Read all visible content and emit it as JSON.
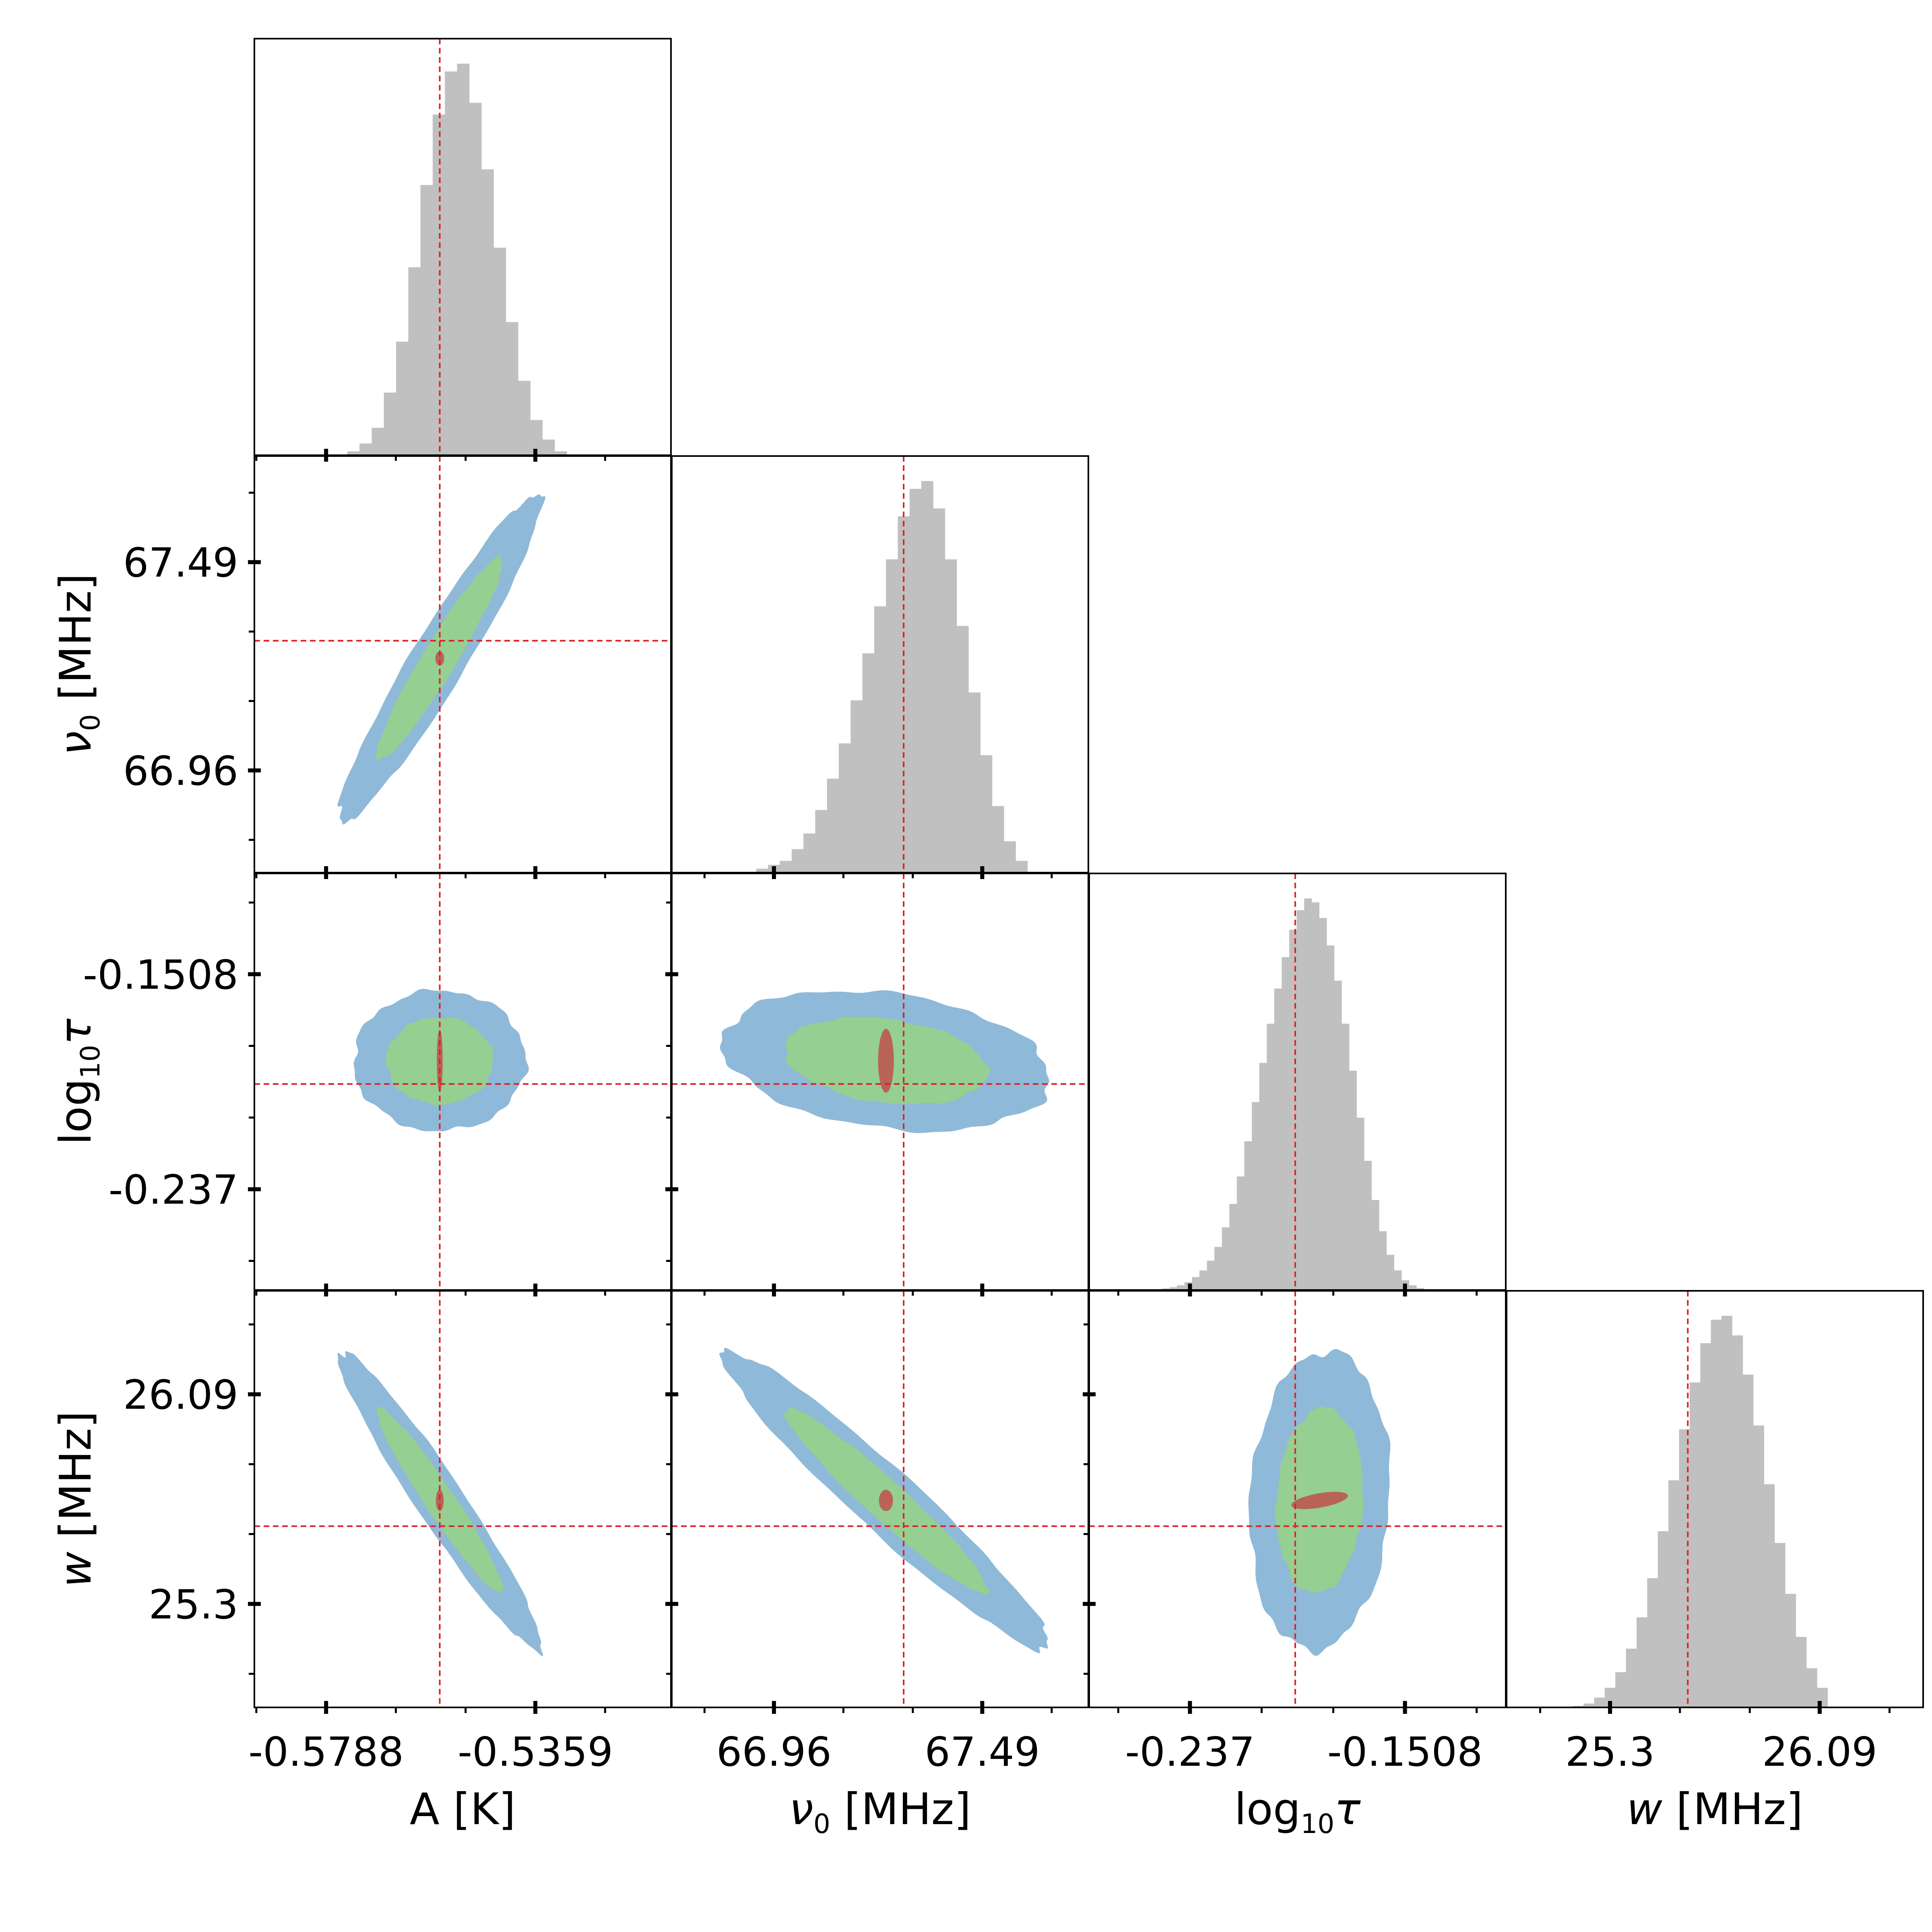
{
  "chart_data": {
    "type": "corner",
    "parameters": [
      {
        "key": "A",
        "label": "A [K]",
        "ticks": [
          -0.5788,
          -0.5359
        ],
        "tick_labels": [
          "-0.5788",
          "-0.5359"
        ],
        "range": [
          -0.5935,
          -0.5081
        ],
        "truth": -0.5555
      },
      {
        "key": "nu0",
        "label": "ν₀ [MHz]",
        "label_symbol": "ν",
        "label_sub": "0",
        "label_unit": "[MHz]",
        "ticks": [
          66.96,
          67.49
        ],
        "tick_labels": [
          "66.96",
          "67.49"
        ],
        "range": [
          66.7,
          67.76
        ],
        "truth": 67.29
      },
      {
        "key": "logtau",
        "label": "log₁₀τ",
        "label_prefix": "log",
        "label_sub": "10",
        "label_symbol": "τ",
        "ticks": [
          -0.237,
          -0.1508
        ],
        "tick_labels": [
          "-0.237",
          "-0.1508"
        ],
        "range": [
          -0.2774,
          -0.1104
        ],
        "truth": -0.1948
      },
      {
        "key": "w",
        "label": "w [MHz]",
        "label_symbol": "w",
        "label_unit": "[MHz]",
        "ticks": [
          25.3,
          26.09
        ],
        "tick_labels": [
          "25.3",
          "26.09"
        ],
        "range": [
          24.91,
          26.48
        ],
        "truth": 25.593
      }
    ],
    "histograms": [
      {
        "param": "A",
        "bins": [
          -0.5732,
          -0.5707,
          -0.5682,
          -0.5657,
          -0.5632,
          -0.5607,
          -0.5582,
          -0.5557,
          -0.5532,
          -0.5507,
          -0.5482,
          -0.5457,
          -0.5432,
          -0.5407,
          -0.5382,
          -0.5357,
          -0.5332,
          -0.5307
        ],
        "counts": [
          0.01,
          0.03,
          0.07,
          0.16,
          0.29,
          0.48,
          0.69,
          0.87,
          0.98,
          1.0,
          0.9,
          0.73,
          0.53,
          0.34,
          0.19,
          0.09,
          0.04,
          0.01
        ]
      },
      {
        "param": "nu0",
        "bins": [
          66.93,
          66.96,
          66.99,
          67.02,
          67.05,
          67.08,
          67.11,
          67.14,
          67.17,
          67.2,
          67.23,
          67.26,
          67.29,
          67.32,
          67.35,
          67.38,
          67.41,
          67.44,
          67.47,
          67.5,
          67.53,
          67.56,
          67.59
        ],
        "counts": [
          0.01,
          0.02,
          0.03,
          0.06,
          0.1,
          0.16,
          0.24,
          0.33,
          0.44,
          0.56,
          0.68,
          0.8,
          0.91,
          0.98,
          1.0,
          0.93,
          0.8,
          0.63,
          0.46,
          0.3,
          0.17,
          0.08,
          0.03
        ]
      },
      {
        "param": "logtau",
        "bins": [
          -0.2497,
          -0.2467,
          -0.2437,
          -0.2407,
          -0.2377,
          -0.2347,
          -0.2317,
          -0.2287,
          -0.2257,
          -0.2227,
          -0.2197,
          -0.2167,
          -0.2137,
          -0.2107,
          -0.2077,
          -0.2047,
          -0.2017,
          -0.1987,
          -0.1957,
          -0.1927,
          -0.1897,
          -0.1867,
          -0.1837,
          -0.1807,
          -0.1777,
          -0.1747,
          -0.1717,
          -0.1687,
          -0.1657,
          -0.1627,
          -0.1597,
          -0.1567,
          -0.1537,
          -0.1507,
          -0.1477,
          -0.1447
        ],
        "counts": [
          0.002,
          0.004,
          0.007,
          0.012,
          0.02,
          0.033,
          0.05,
          0.075,
          0.11,
          0.16,
          0.22,
          0.29,
          0.38,
          0.48,
          0.58,
          0.68,
          0.77,
          0.85,
          0.92,
          0.97,
          1.0,
          0.99,
          0.95,
          0.88,
          0.79,
          0.68,
          0.56,
          0.44,
          0.33,
          0.23,
          0.15,
          0.09,
          0.05,
          0.025,
          0.012,
          0.005
        ]
      },
      {
        "param": "w",
        "bins": [
          25.18,
          25.22,
          25.26,
          25.3,
          25.34,
          25.38,
          25.42,
          25.46,
          25.5,
          25.54,
          25.58,
          25.62,
          25.66,
          25.7,
          25.74,
          25.78,
          25.82,
          25.86,
          25.9,
          25.94,
          25.98,
          26.02,
          26.06,
          26.1
        ],
        "counts": [
          0.004,
          0.01,
          0.025,
          0.05,
          0.09,
          0.15,
          0.23,
          0.33,
          0.45,
          0.58,
          0.71,
          0.83,
          0.93,
          0.99,
          1.0,
          0.95,
          0.85,
          0.72,
          0.57,
          0.42,
          0.29,
          0.18,
          0.1,
          0.05
        ]
      }
    ],
    "contours": [
      {
        "x": "A",
        "y": "nu0",
        "cx": -0.5555,
        "cy": 67.245,
        "sx": 0.0085,
        "sy": 0.17,
        "rho": 0.95,
        "core_rx": 0.0009,
        "core_ry": 0.018
      },
      {
        "x": "A",
        "y": "logtau",
        "cx": -0.5555,
        "cy": -0.1855,
        "sx": 0.0072,
        "sy": 0.0115,
        "rho": 0.0,
        "core_rx": 0.0006,
        "core_ry": 0.0125
      },
      {
        "x": "A",
        "y": "w",
        "cx": -0.5555,
        "cy": 25.69,
        "sx": 0.0085,
        "sy": 0.23,
        "rho": -0.96,
        "core_rx": 0.0008,
        "core_ry": 0.04
      },
      {
        "x": "nu0",
        "y": "logtau",
        "cx": 67.245,
        "cy": -0.1855,
        "sx": 0.17,
        "sy": 0.0115,
        "rho": -0.25,
        "core_rx": 0.02,
        "core_ry": 0.0128
      },
      {
        "x": "nu0",
        "y": "w",
        "cx": 67.245,
        "cy": 25.69,
        "sx": 0.17,
        "sy": 0.23,
        "rho": -0.96,
        "core_rx": 0.018,
        "core_ry": 0.04
      },
      {
        "x": "logtau",
        "y": "w",
        "cx": -0.185,
        "cy": 25.69,
        "sx": 0.0115,
        "sy": 0.23,
        "rho": 0.1,
        "core_rx": 0.0115,
        "core_ry": 0.027,
        "core_angle_deg": -10
      }
    ],
    "levels": [
      "2-sigma",
      "1-sigma",
      "core"
    ],
    "colors": {
      "outer": "#8fb9d8",
      "inner": "#95cf92",
      "core": "#c0504d",
      "hist": "#c0c0c0",
      "truth": "#dd2222",
      "axis": "#000000"
    }
  }
}
